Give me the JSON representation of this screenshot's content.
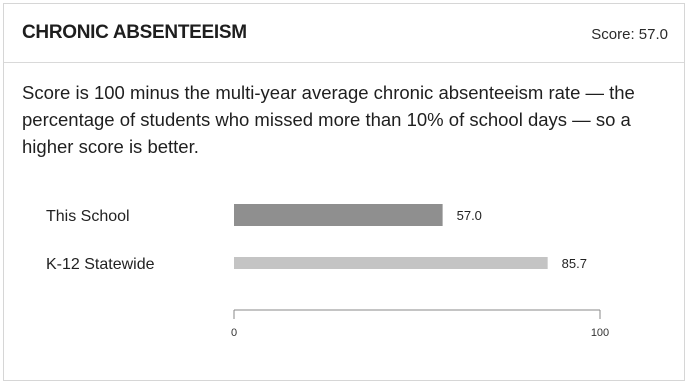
{
  "card": {
    "title": "CHRONIC ABSENTEEISM",
    "score_text": "Score: 57.0",
    "description": "Score is 100 minus the multi-year average chronic absenteeism rate — the percentage of students who missed more than 10% of school days — so a higher score is better."
  },
  "chart_data": {
    "type": "bar",
    "orientation": "horizontal",
    "categories": [
      "This School",
      "K-12 Statewide"
    ],
    "values": [
      57.0,
      85.7
    ],
    "value_labels": [
      "57.0",
      "85.7"
    ],
    "xlim": [
      0,
      100
    ],
    "x_ticks": [
      0,
      100
    ],
    "x_tick_labels": [
      "0",
      "100"
    ],
    "grid": false,
    "legend": "none",
    "colors": [
      "#8f8f8f",
      "#c4c4c4"
    ],
    "axis_color": "#8a8a8a"
  }
}
